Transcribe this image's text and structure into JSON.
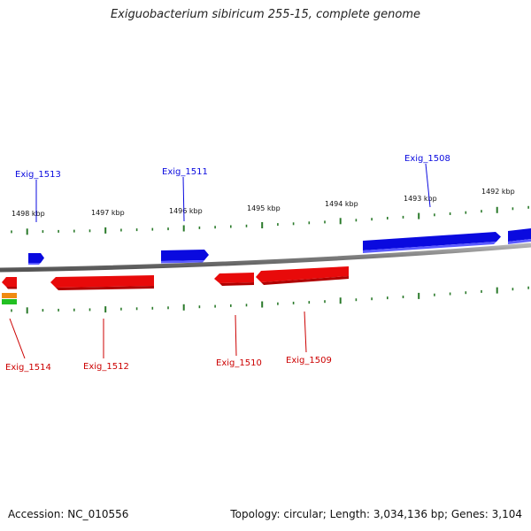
{
  "title": "Exiguobacterium sibiricum 255-15, complete genome",
  "footer": {
    "accession": "Accession: NC_010556",
    "summary": "Topology: circular; Length: 3,034,136 bp; Genes: 3,104"
  },
  "colors": {
    "forward_gene": "#0a0adf",
    "reverse_gene": "#e80a0a",
    "backbone": "#8a8a8a",
    "tick": "#2a7a2a"
  },
  "scale_labels": [
    "1498 kbp",
    "1497 kbp",
    "1496 kbp",
    "1495 kbp",
    "1494 kbp",
    "1493 kbp",
    "1492 kbp"
  ],
  "genes_forward": [
    {
      "label": "Exig_1513"
    },
    {
      "label": "Exig_1511"
    },
    {
      "label": "Exig_1508"
    }
  ],
  "genes_reverse": [
    {
      "label": "Exig_1514"
    },
    {
      "label": "Exig_1512"
    },
    {
      "label": "Exig_1510"
    },
    {
      "label": "Exig_1509"
    }
  ]
}
